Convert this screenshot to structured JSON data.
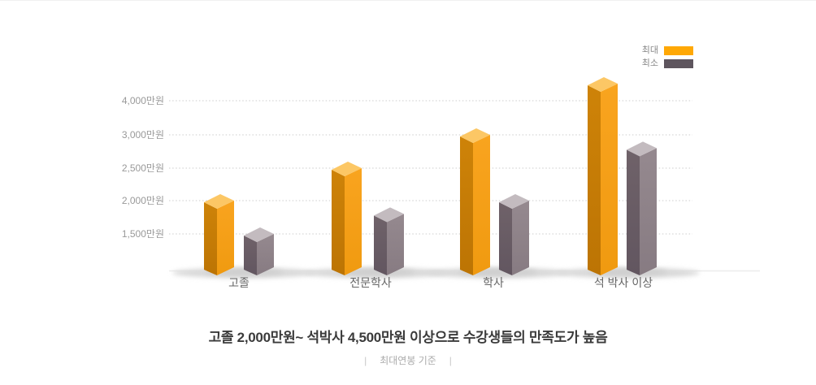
{
  "chart_data": {
    "type": "bar",
    "style": "3d-column",
    "categories": [
      "고졸",
      "전문학사",
      "학사",
      "석 박사 이상"
    ],
    "series": [
      {
        "name": "최대",
        "values": [
          2000,
          2500,
          3000,
          4500
        ],
        "color_front": "#F9A41F",
        "color_side": "#CE8308",
        "color_top": "#FCC765",
        "legend_color": "#FFA805"
      },
      {
        "name": "최소",
        "values": [
          1500,
          1800,
          2000,
          2800
        ],
        "color_front": "#95898F",
        "color_side": "#6F6269",
        "color_top": "#C3BBBF",
        "legend_color": "#5E555E"
      }
    ],
    "y_ticks": [
      {
        "value": 1500,
        "label": "1,500만원"
      },
      {
        "value": 2000,
        "label": "2,000만원"
      },
      {
        "value": 2500,
        "label": "2,500만원"
      },
      {
        "value": 3000,
        "label": "3,000만원"
      },
      {
        "value": 4000,
        "label": "4,000만원"
      }
    ],
    "unit": "만원",
    "grid": "dotted horizontal",
    "legend_position": "top-right",
    "gridline_color": "#cccccc",
    "baseline_color": "#ececec"
  },
  "legend": {
    "items": [
      {
        "label": "최대",
        "color": "#FFA805"
      },
      {
        "label": "최소",
        "color": "#5E555E"
      }
    ]
  },
  "caption": {
    "title": "고졸 2,000만원~ 석박사 4,500만원 이상으로 수강생들의 만족도가 높음",
    "note": "최대연봉 기준",
    "divider": "|"
  }
}
